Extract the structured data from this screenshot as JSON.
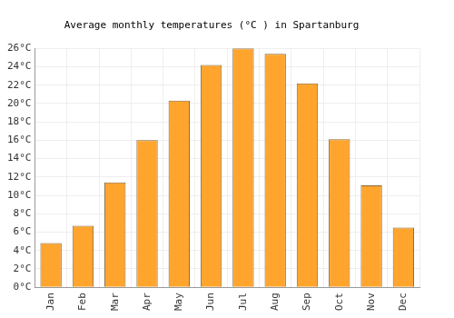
{
  "chart_data": {
    "type": "bar",
    "title": "Average monthly temperatures (°C ) in Spartanburg",
    "categories": [
      "Jan",
      "Feb",
      "Mar",
      "Apr",
      "May",
      "Jun",
      "Jul",
      "Aug",
      "Sep",
      "Oct",
      "Nov",
      "Dec"
    ],
    "values": [
      4.8,
      6.7,
      11.4,
      16.0,
      20.3,
      24.2,
      26.0,
      25.4,
      22.2,
      16.1,
      11.1,
      6.5
    ],
    "color": "#ffa52e",
    "ylim": [
      0,
      26
    ],
    "yticks": [
      {
        "value": 0,
        "label": "0°C"
      },
      {
        "value": 2,
        "label": "2°C"
      },
      {
        "value": 4,
        "label": "4°C"
      },
      {
        "value": 6,
        "label": "6°C"
      },
      {
        "value": 8,
        "label": "8°C"
      },
      {
        "value": 10,
        "label": "10°C"
      },
      {
        "value": 12,
        "label": "12°C"
      },
      {
        "value": 14,
        "label": "14°C"
      },
      {
        "value": 16,
        "label": "16°C"
      },
      {
        "value": 18,
        "label": "18°C"
      },
      {
        "value": 20,
        "label": "20°C"
      },
      {
        "value": 22,
        "label": "22°C"
      },
      {
        "value": 24,
        "label": "24°C"
      },
      {
        "value": 26,
        "label": "26°C"
      }
    ],
    "grid": true
  }
}
